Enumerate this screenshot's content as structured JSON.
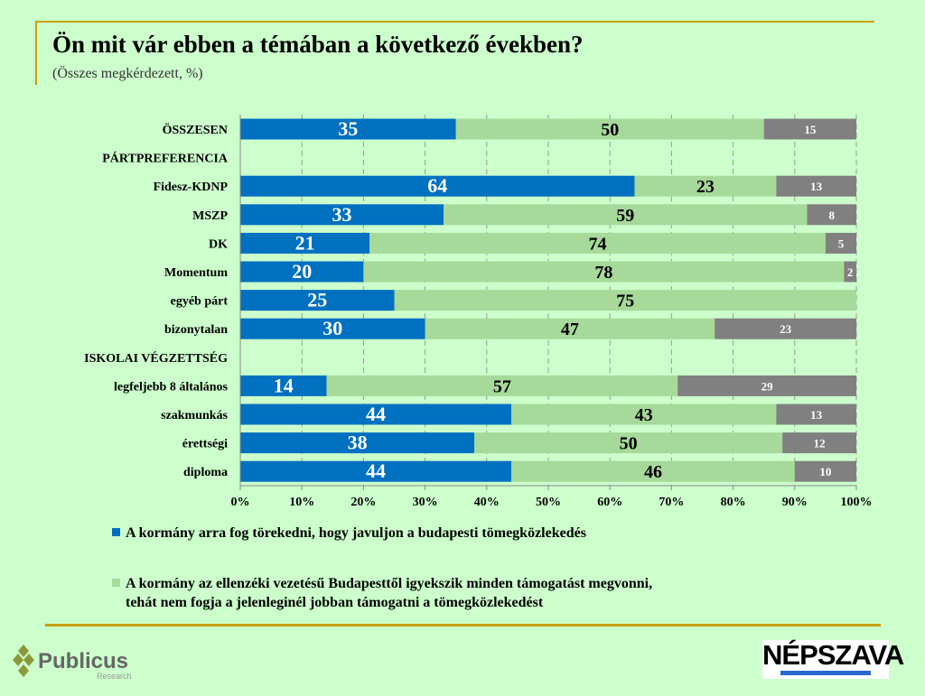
{
  "title": "Ön mit vár ebben a témában a következő években?",
  "subtitle": "(Összes megkérdezett, %)",
  "colors": {
    "blue": "#0070c0",
    "green": "#a6d99a",
    "gray": "#808080",
    "background": "#ccffcc",
    "rule": "#c8a000"
  },
  "chart_data": {
    "type": "bar",
    "orientation": "horizontal",
    "stacked": true,
    "categories": [
      "ÖSSZESEN",
      "PÁRTPREFERENCIA",
      "Fidesz-KDNP",
      "MSZP",
      "DK",
      "Momentum",
      "egyéb párt",
      "bizonytalan",
      "ISKOLAI VÉGZETTSÉG",
      "legfeljebb 8 általános",
      "szakmunkás",
      "érettségi",
      "diploma"
    ],
    "series": [
      {
        "name": "A kormány arra fog törekedni, hogy javuljon a budapesti tömegközlekedés",
        "color": "#0070c0",
        "values": [
          35,
          null,
          64,
          33,
          21,
          20,
          25,
          30,
          null,
          14,
          44,
          38,
          44
        ]
      },
      {
        "name": "A kormány az ellenzéki vezetésű Budapesttől igyekszik minden támogatást megvonni, tehát nem fogja a jelenleginél jobban támogatni a tömegközlekedést",
        "color": "#a6d99a",
        "values": [
          50,
          null,
          23,
          59,
          74,
          78,
          75,
          47,
          null,
          57,
          43,
          50,
          46
        ]
      },
      {
        "color": "#808080",
        "values": [
          15,
          null,
          13,
          8,
          5,
          2,
          null,
          23,
          null,
          29,
          13,
          12,
          10
        ]
      }
    ],
    "xlim": [
      0,
      100
    ],
    "xticks": [
      "0%",
      "10%",
      "20%",
      "30%",
      "40%",
      "50%",
      "60%",
      "70%",
      "80%",
      "90%",
      "100%"
    ],
    "grid": "vertical dashed",
    "legend": "bottom"
  },
  "legend": {
    "line1": "A kormány arra fog törekedni, hogy javuljon a budapesti tömegközlekedés",
    "line2a": "A kormány az ellenzéki vezetésű Budapesttől igyekszik minden támogatást megvonni,",
    "line2b": "tehát nem fogja a jelenleginél jobban támogatni a tömegközlekedést"
  },
  "logos": {
    "left": "Publicus",
    "left_sub": "Research",
    "right": "NÉPSZAVA"
  }
}
